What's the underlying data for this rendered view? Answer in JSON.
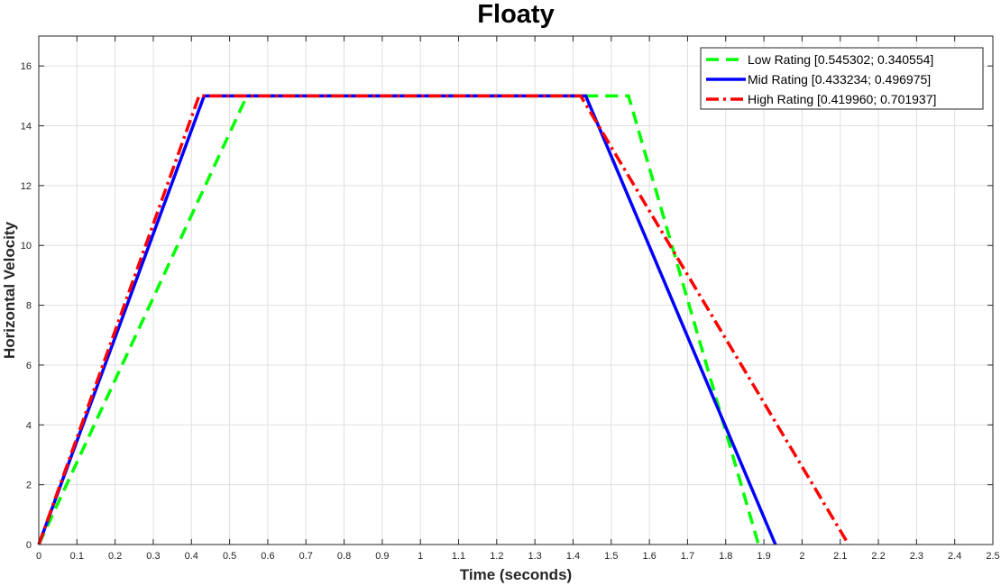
{
  "chart_data": {
    "type": "line",
    "title": "Floaty",
    "xlabel": "Time (seconds)",
    "ylabel": "Horizontal Velocity",
    "xlim": [
      0,
      2.5
    ],
    "ylim": [
      0,
      17
    ],
    "xticks": [
      0,
      0.1,
      0.2,
      0.3,
      0.4,
      0.5,
      0.6,
      0.7,
      0.8,
      0.9,
      1,
      1.1,
      1.2,
      1.3,
      1.4,
      1.5,
      1.6,
      1.7,
      1.8,
      1.9,
      2,
      2.1,
      2.2,
      2.3,
      2.4,
      2.5
    ],
    "xtick_labels": [
      "0",
      "0.1",
      "0.2",
      "0.3",
      "0.4",
      "0.5",
      "0.6",
      "0.7",
      "0.8",
      "0.9",
      "1",
      "1.1",
      "1.2",
      "1.3",
      "1.4",
      "1.5",
      "1.6",
      "1.7",
      "1.8",
      "1.9",
      "2",
      "2.1",
      "2.2",
      "2.3",
      "2.4",
      "2.5"
    ],
    "yticks": [
      0,
      2,
      4,
      6,
      8,
      10,
      12,
      14,
      16
    ],
    "ytick_labels": [
      "0",
      "2",
      "4",
      "6",
      "8",
      "10",
      "12",
      "14",
      "16"
    ],
    "grid": true,
    "legend_position": "top-right",
    "series": [
      {
        "name": "Low Rating [0.545302; 0.340554]",
        "color": "#00ff00",
        "line_style": "dashed",
        "x": [
          0,
          0.545302,
          1.545302,
          1.885856
        ],
        "y": [
          0,
          15,
          15,
          0
        ]
      },
      {
        "name": "Mid Rating [0.433234; 0.496975]",
        "color": "#0000ff",
        "line_style": "solid",
        "x": [
          0,
          0.433234,
          1.433234,
          1.930209
        ],
        "y": [
          0,
          15,
          15,
          0
        ]
      },
      {
        "name": "High Rating [0.419960; 0.701937]",
        "color": "#ff0000",
        "line_style": "dash-dot",
        "x": [
          0,
          0.41996,
          1.41996,
          2.121897
        ],
        "y": [
          0,
          15,
          15,
          0
        ]
      }
    ]
  }
}
